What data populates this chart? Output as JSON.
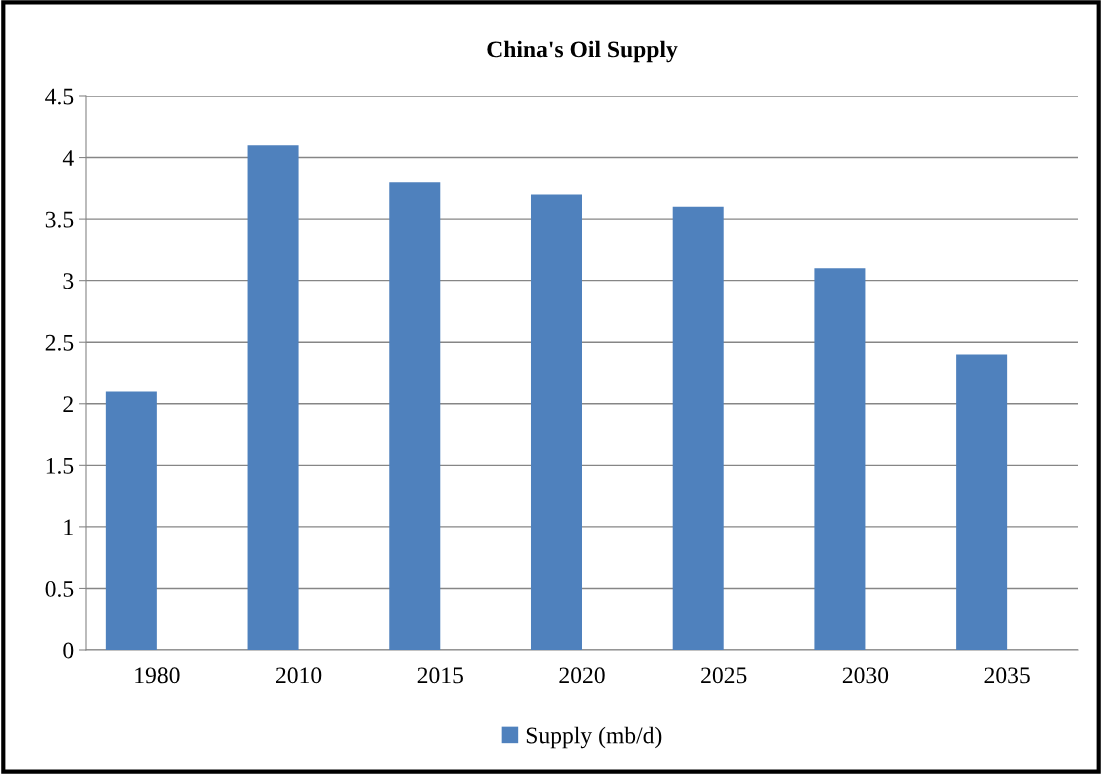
{
  "chart_data": {
    "type": "bar",
    "title": "China's Oil Supply",
    "categories": [
      "1980",
      "2010",
      "2015",
      "2020",
      "2025",
      "2030",
      "2035"
    ],
    "series": [
      {
        "name": "Supply (mb/d)",
        "color": "#4f81bd",
        "values": [
          2.1,
          4.1,
          3.8,
          3.7,
          3.6,
          3.1,
          2.4
        ]
      }
    ],
    "ylim": [
      0,
      4.5
    ],
    "yticks": [
      0,
      0.5,
      1,
      1.5,
      2,
      2.5,
      3,
      3.5,
      4,
      4.5
    ],
    "grid": "y",
    "legend": "bottom"
  }
}
